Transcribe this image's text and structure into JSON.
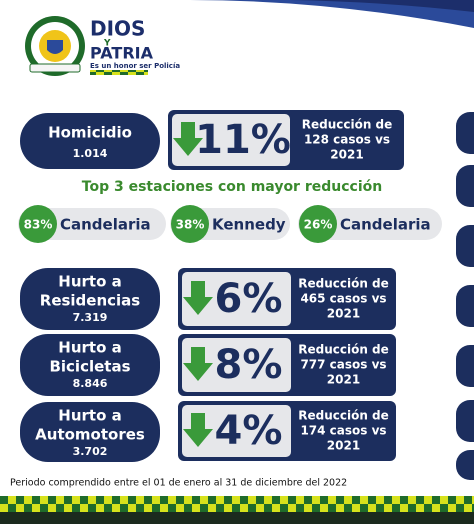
{
  "header": {
    "brand_top": "DIOS",
    "brand_mid": "Y",
    "brand_bottom": "PATRIA",
    "slogan": "Es un honor ser Policía"
  },
  "indicators": [
    {
      "label_lines": [
        "Homicidio"
      ],
      "count": "1.014",
      "change": "11%",
      "note_lines": [
        "Reducción de",
        "128 casos vs",
        "2021"
      ]
    },
    {
      "label_lines": [
        "Hurto a",
        "Residencias"
      ],
      "count": "7.319",
      "change": "6%",
      "note_lines": [
        "Reducción de",
        "465 casos vs",
        "2021"
      ]
    },
    {
      "label_lines": [
        "Hurto a",
        "Bicicletas"
      ],
      "count": "8.846",
      "change": "8%",
      "note_lines": [
        "Reducción de",
        "777 casos vs",
        "2021"
      ]
    },
    {
      "label_lines": [
        "Hurto a",
        "Automotores"
      ],
      "count": "3.702",
      "change": "4%",
      "note_lines": [
        "Reducción de",
        "174 casos vs",
        "2021"
      ]
    }
  ],
  "stations_title": "Top 3 estaciones con mayor reducción",
  "stations": [
    {
      "percent": "83%",
      "name": "Candelaria"
    },
    {
      "percent": "38%",
      "name": "Kennedy"
    },
    {
      "percent": "26%",
      "name": "Candelaria"
    }
  ],
  "footer": "Periodo comprendido entre el 01 de enero al 31 de diciembre del 2022"
}
